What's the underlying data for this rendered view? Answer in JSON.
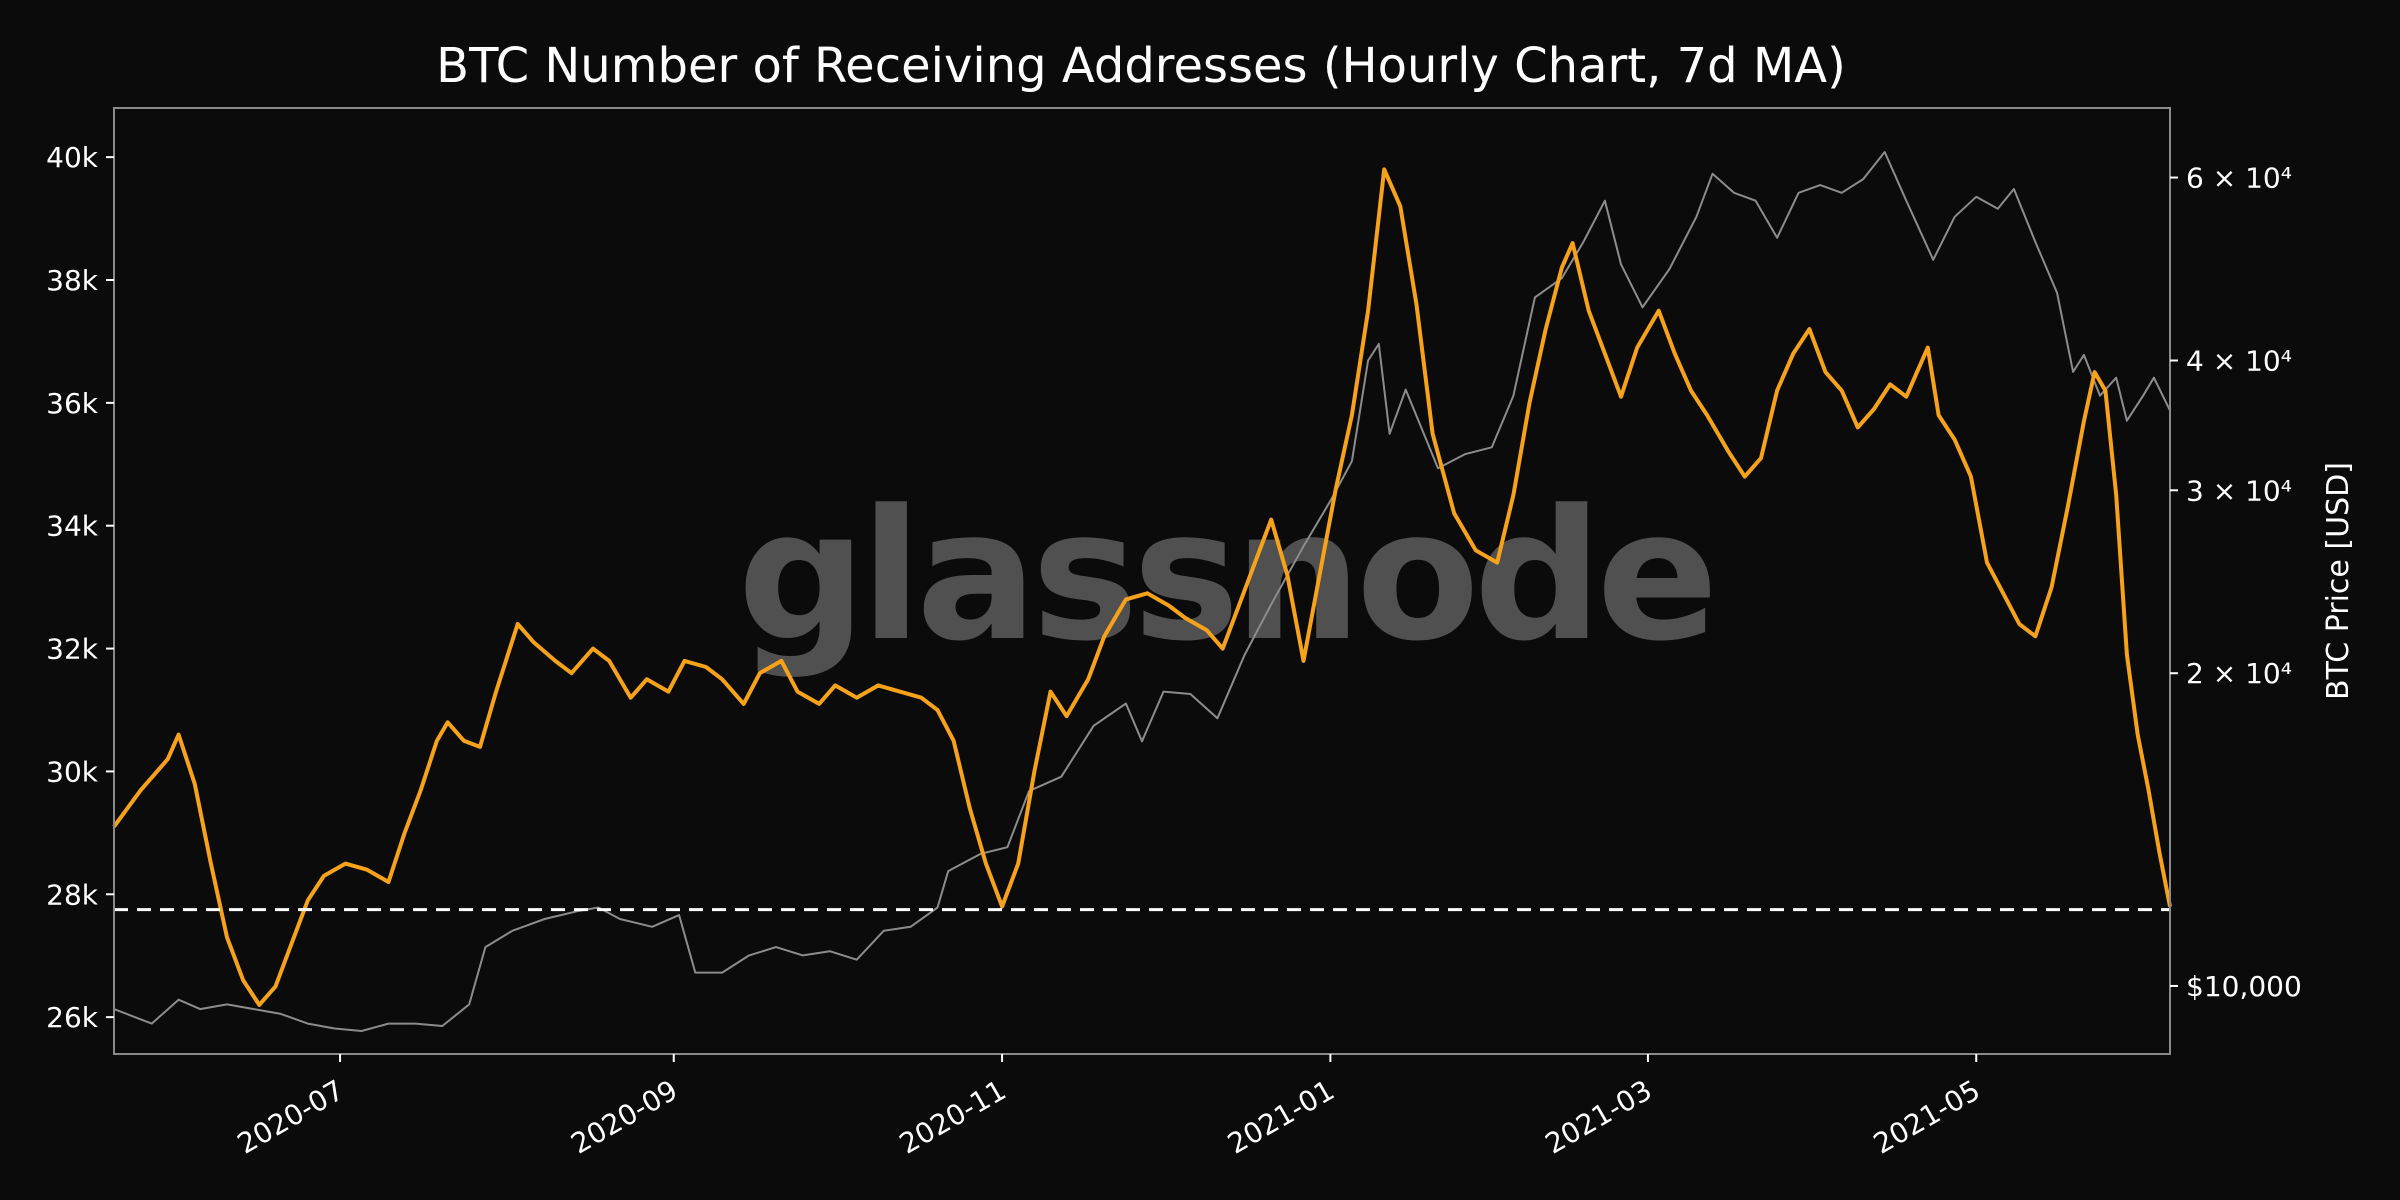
{
  "chart_data": {
    "type": "line",
    "title": "BTC Number of Receiving Addresses (Hourly Chart, 7d MA)",
    "watermark": "glassnode",
    "left_axis": {
      "ylim": [
        25400,
        40800
      ],
      "ticks": [
        26000,
        28000,
        30000,
        32000,
        34000,
        36000,
        38000,
        40000
      ],
      "tick_labels": [
        "26k",
        "28k",
        "30k",
        "32k",
        "34k",
        "36k",
        "38k",
        "40k"
      ]
    },
    "right_axis": {
      "label": "BTC Price [USD]",
      "scale": "log",
      "ylim": [
        8600,
        70000
      ],
      "ticks": [
        10000,
        20000,
        30000,
        40000,
        60000
      ],
      "tick_labels": [
        "$10,000",
        "2 × 10⁴",
        "3 × 10⁴",
        "4 × 10⁴",
        "6 × 10⁴"
      ]
    },
    "x_axis": {
      "xlim": [
        "2020-05-20",
        "2021-06-06"
      ],
      "ticks": [
        "2020-07-01",
        "2020-09-01",
        "2020-11-01",
        "2021-01-01",
        "2021-03-01",
        "2021-05-01"
      ],
      "tick_labels": [
        "2020-07",
        "2020-09",
        "2020-11",
        "2021-01",
        "2021-03",
        "2021-05"
      ]
    },
    "reference_line": {
      "value": 27750,
      "style": "dashed",
      "color": "#ffffff"
    },
    "series": [
      {
        "axis": "left",
        "color": "#f7a21b",
        "points": [
          [
            "2020-05-20",
            29100
          ],
          [
            "2020-05-25",
            29700
          ],
          [
            "2020-05-30",
            30200
          ],
          [
            "2020-06-01",
            30600
          ],
          [
            "2020-06-04",
            29800
          ],
          [
            "2020-06-07",
            28500
          ],
          [
            "2020-06-10",
            27300
          ],
          [
            "2020-06-13",
            26600
          ],
          [
            "2020-06-16",
            26200
          ],
          [
            "2020-06-19",
            26500
          ],
          [
            "2020-06-22",
            27200
          ],
          [
            "2020-06-25",
            27900
          ],
          [
            "2020-06-28",
            28300
          ],
          [
            "2020-07-02",
            28500
          ],
          [
            "2020-07-06",
            28400
          ],
          [
            "2020-07-10",
            28200
          ],
          [
            "2020-07-13",
            29000
          ],
          [
            "2020-07-16",
            29700
          ],
          [
            "2020-07-19",
            30500
          ],
          [
            "2020-07-21",
            30800
          ],
          [
            "2020-07-24",
            30500
          ],
          [
            "2020-07-27",
            30400
          ],
          [
            "2020-07-30",
            31300
          ],
          [
            "2020-08-03",
            32400
          ],
          [
            "2020-08-06",
            32100
          ],
          [
            "2020-08-10",
            31800
          ],
          [
            "2020-08-13",
            31600
          ],
          [
            "2020-08-17",
            32000
          ],
          [
            "2020-08-20",
            31800
          ],
          [
            "2020-08-24",
            31200
          ],
          [
            "2020-08-27",
            31500
          ],
          [
            "2020-08-31",
            31300
          ],
          [
            "2020-09-03",
            31800
          ],
          [
            "2020-09-07",
            31700
          ],
          [
            "2020-09-10",
            31500
          ],
          [
            "2020-09-14",
            31100
          ],
          [
            "2020-09-17",
            31600
          ],
          [
            "2020-09-21",
            31800
          ],
          [
            "2020-09-24",
            31300
          ],
          [
            "2020-09-28",
            31100
          ],
          [
            "2020-10-01",
            31400
          ],
          [
            "2020-10-05",
            31200
          ],
          [
            "2020-10-09",
            31400
          ],
          [
            "2020-10-13",
            31300
          ],
          [
            "2020-10-17",
            31200
          ],
          [
            "2020-10-20",
            31000
          ],
          [
            "2020-10-23",
            30500
          ],
          [
            "2020-10-26",
            29400
          ],
          [
            "2020-10-29",
            28500
          ],
          [
            "2020-11-01",
            27800
          ],
          [
            "2020-11-04",
            28500
          ],
          [
            "2020-11-07",
            30000
          ],
          [
            "2020-11-10",
            31300
          ],
          [
            "2020-11-13",
            30900
          ],
          [
            "2020-11-17",
            31500
          ],
          [
            "2020-11-20",
            32200
          ],
          [
            "2020-11-24",
            32800
          ],
          [
            "2020-11-28",
            32900
          ],
          [
            "2020-12-02",
            32700
          ],
          [
            "2020-12-05",
            32500
          ],
          [
            "2020-12-09",
            32300
          ],
          [
            "2020-12-12",
            32000
          ],
          [
            "2020-12-15",
            32700
          ],
          [
            "2020-12-18",
            33400
          ],
          [
            "2020-12-21",
            34100
          ],
          [
            "2020-12-24",
            33200
          ],
          [
            "2020-12-27",
            31800
          ],
          [
            "2020-12-30",
            33200
          ],
          [
            "2021-01-02",
            34600
          ],
          [
            "2021-01-05",
            35800
          ],
          [
            "2021-01-08",
            37500
          ],
          [
            "2021-01-11",
            39800
          ],
          [
            "2021-01-14",
            39200
          ],
          [
            "2021-01-17",
            37600
          ],
          [
            "2021-01-20",
            35500
          ],
          [
            "2021-01-24",
            34200
          ],
          [
            "2021-01-28",
            33600
          ],
          [
            "2021-02-01",
            33400
          ],
          [
            "2021-02-04",
            34500
          ],
          [
            "2021-02-07",
            36000
          ],
          [
            "2021-02-10",
            37200
          ],
          [
            "2021-02-13",
            38200
          ],
          [
            "2021-02-15",
            38600
          ],
          [
            "2021-02-18",
            37500
          ],
          [
            "2021-02-21",
            36800
          ],
          [
            "2021-02-24",
            36100
          ],
          [
            "2021-02-27",
            36900
          ],
          [
            "2021-03-03",
            37500
          ],
          [
            "2021-03-06",
            36800
          ],
          [
            "2021-03-09",
            36200
          ],
          [
            "2021-03-12",
            35800
          ],
          [
            "2021-03-16",
            35200
          ],
          [
            "2021-03-19",
            34800
          ],
          [
            "2021-03-22",
            35100
          ],
          [
            "2021-03-25",
            36200
          ],
          [
            "2021-03-28",
            36800
          ],
          [
            "2021-03-31",
            37200
          ],
          [
            "2021-04-03",
            36500
          ],
          [
            "2021-04-06",
            36200
          ],
          [
            "2021-04-09",
            35600
          ],
          [
            "2021-04-12",
            35900
          ],
          [
            "2021-04-15",
            36300
          ],
          [
            "2021-04-18",
            36100
          ],
          [
            "2021-04-20",
            36500
          ],
          [
            "2021-04-22",
            36900
          ],
          [
            "2021-04-24",
            35800
          ],
          [
            "2021-04-27",
            35400
          ],
          [
            "2021-04-30",
            34800
          ],
          [
            "2021-05-03",
            33400
          ],
          [
            "2021-05-06",
            32900
          ],
          [
            "2021-05-09",
            32400
          ],
          [
            "2021-05-12",
            32200
          ],
          [
            "2021-05-15",
            33000
          ],
          [
            "2021-05-18",
            34300
          ],
          [
            "2021-05-21",
            35700
          ],
          [
            "2021-05-23",
            36500
          ],
          [
            "2021-05-25",
            36200
          ],
          [
            "2021-05-27",
            34500
          ],
          [
            "2021-05-29",
            31900
          ],
          [
            "2021-05-31",
            30600
          ],
          [
            "2021-06-02",
            29700
          ],
          [
            "2021-06-04",
            28700
          ],
          [
            "2021-06-06",
            27800
          ]
        ]
      },
      {
        "axis": "right",
        "color": "#8c8c8c",
        "points": [
          [
            "2020-05-20",
            9500
          ],
          [
            "2020-05-27",
            9200
          ],
          [
            "2020-06-01",
            9700
          ],
          [
            "2020-06-05",
            9500
          ],
          [
            "2020-06-10",
            9600
          ],
          [
            "2020-06-15",
            9500
          ],
          [
            "2020-06-20",
            9400
          ],
          [
            "2020-06-25",
            9200
          ],
          [
            "2020-06-30",
            9100
          ],
          [
            "2020-07-05",
            9050
          ],
          [
            "2020-07-10",
            9200
          ],
          [
            "2020-07-15",
            9200
          ],
          [
            "2020-07-20",
            9150
          ],
          [
            "2020-07-25",
            9600
          ],
          [
            "2020-07-28",
            10900
          ],
          [
            "2020-08-02",
            11300
          ],
          [
            "2020-08-08",
            11600
          ],
          [
            "2020-08-14",
            11800
          ],
          [
            "2020-08-18",
            11900
          ],
          [
            "2020-08-22",
            11600
          ],
          [
            "2020-08-28",
            11400
          ],
          [
            "2020-09-02",
            11700
          ],
          [
            "2020-09-05",
            10300
          ],
          [
            "2020-09-10",
            10300
          ],
          [
            "2020-09-15",
            10700
          ],
          [
            "2020-09-20",
            10900
          ],
          [
            "2020-09-25",
            10700
          ],
          [
            "2020-09-30",
            10800
          ],
          [
            "2020-10-05",
            10600
          ],
          [
            "2020-10-10",
            11300
          ],
          [
            "2020-10-15",
            11400
          ],
          [
            "2020-10-20",
            11900
          ],
          [
            "2020-10-22",
            12900
          ],
          [
            "2020-10-28",
            13400
          ],
          [
            "2020-11-02",
            13600
          ],
          [
            "2020-11-06",
            15400
          ],
          [
            "2020-11-12",
            15900
          ],
          [
            "2020-11-18",
            17800
          ],
          [
            "2020-11-24",
            18700
          ],
          [
            "2020-11-27",
            17200
          ],
          [
            "2020-12-01",
            19200
          ],
          [
            "2020-12-06",
            19100
          ],
          [
            "2020-12-11",
            18100
          ],
          [
            "2020-12-16",
            20800
          ],
          [
            "2020-12-21",
            23300
          ],
          [
            "2020-12-27",
            26500
          ],
          [
            "2021-01-01",
            29300
          ],
          [
            "2021-01-05",
            32000
          ],
          [
            "2021-01-08",
            40000
          ],
          [
            "2021-01-10",
            41500
          ],
          [
            "2021-01-12",
            34000
          ],
          [
            "2021-01-15",
            37500
          ],
          [
            "2021-01-21",
            31500
          ],
          [
            "2021-01-26",
            32500
          ],
          [
            "2021-01-31",
            33000
          ],
          [
            "2021-02-04",
            37000
          ],
          [
            "2021-02-08",
            46000
          ],
          [
            "2021-02-13",
            48000
          ],
          [
            "2021-02-17",
            52000
          ],
          [
            "2021-02-21",
            57000
          ],
          [
            "2021-02-24",
            49500
          ],
          [
            "2021-02-28",
            45000
          ],
          [
            "2021-03-05",
            49000
          ],
          [
            "2021-03-10",
            55000
          ],
          [
            "2021-03-13",
            60500
          ],
          [
            "2021-03-17",
            58000
          ],
          [
            "2021-03-21",
            57000
          ],
          [
            "2021-03-25",
            52500
          ],
          [
            "2021-03-29",
            58000
          ],
          [
            "2021-04-02",
            59000
          ],
          [
            "2021-04-06",
            58000
          ],
          [
            "2021-04-10",
            59800
          ],
          [
            "2021-04-14",
            63500
          ],
          [
            "2021-04-18",
            57000
          ],
          [
            "2021-04-23",
            50000
          ],
          [
            "2021-04-27",
            55000
          ],
          [
            "2021-05-01",
            57500
          ],
          [
            "2021-05-05",
            56000
          ],
          [
            "2021-05-08",
            58500
          ],
          [
            "2021-05-12",
            52000
          ],
          [
            "2021-05-16",
            46500
          ],
          [
            "2021-05-19",
            39000
          ],
          [
            "2021-05-21",
            40500
          ],
          [
            "2021-05-24",
            37000
          ],
          [
            "2021-05-27",
            38500
          ],
          [
            "2021-05-29",
            35000
          ],
          [
            "2021-06-01",
            37000
          ],
          [
            "2021-06-03",
            38500
          ],
          [
            "2021-06-06",
            35800
          ]
        ]
      }
    ]
  }
}
